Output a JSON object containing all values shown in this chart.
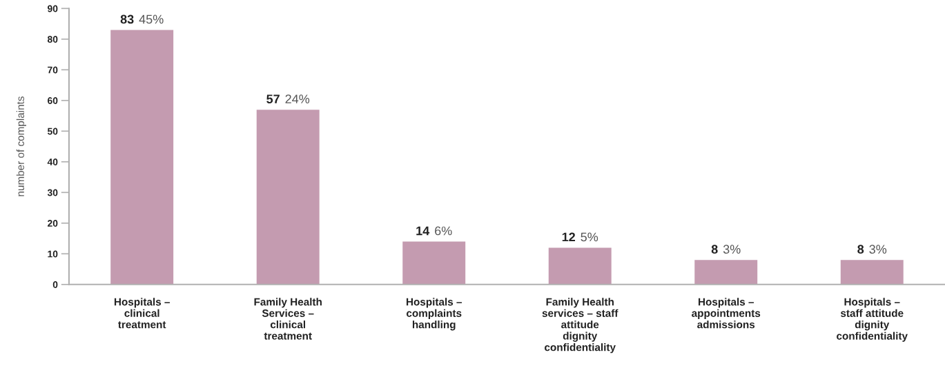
{
  "chart_data": {
    "type": "bar",
    "ylabel": "number of complaints",
    "categories": [
      "Hospitals –\nclinical\ntreatment",
      "Family Health\nServices –\nclinical\ntreatment",
      "Hospitals –\ncomplaints\nhandling",
      "Family Health\nservices – staff\nattitude\ndignity\nconfidentiality",
      "Hospitals –\nappointments\nadmissions",
      "Hospitals –\nstaff attitude\ndignity\nconfidentiality"
    ],
    "values": [
      83,
      57,
      14,
      12,
      8,
      8
    ],
    "value_labels": [
      "83 45%",
      "57 24%",
      "14 6%",
      "12 5%",
      "8 3%",
      "8 3%"
    ],
    "color": "#c49bb0",
    "ylim": [
      0,
      90
    ],
    "yticks": [
      0,
      10,
      20,
      30,
      40,
      50,
      60,
      70,
      80,
      90
    ],
    "grid": false,
    "legend": false
  }
}
